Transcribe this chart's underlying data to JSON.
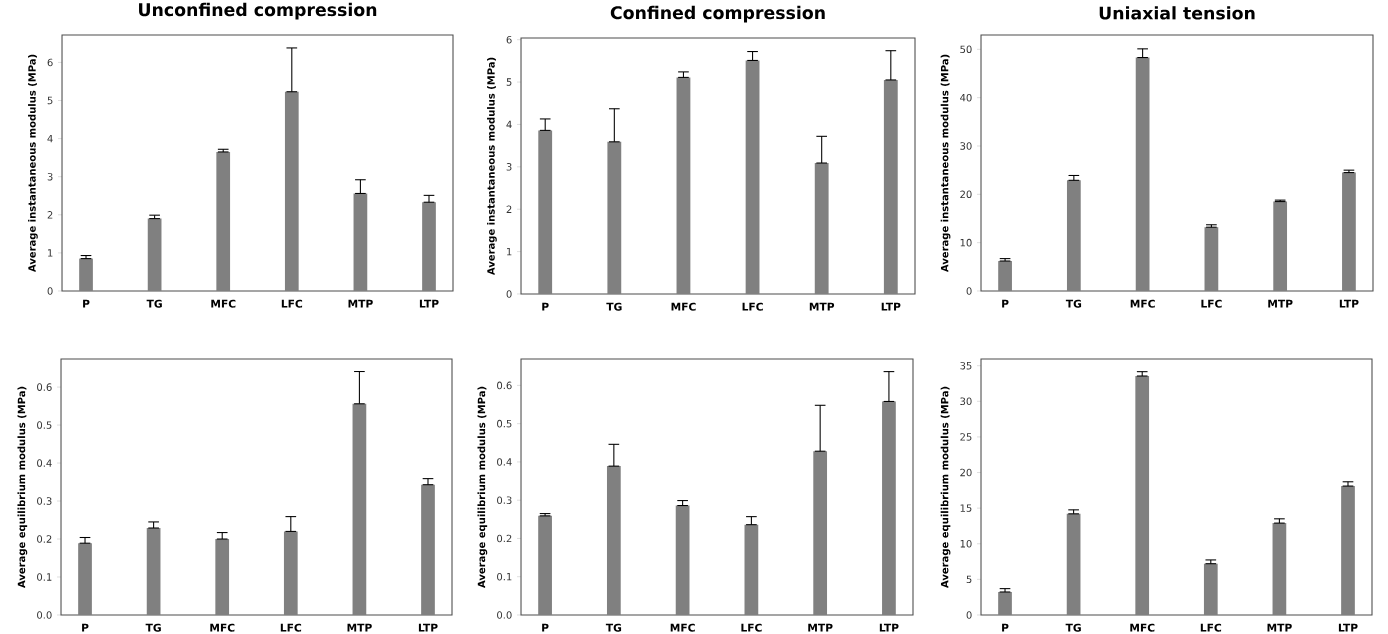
{
  "chart_data": [
    {
      "type": "bar",
      "title": "Unconfined compression",
      "ylabel": "Average instantaneous modulus (MPa)",
      "categories": [
        "P",
        "TG",
        "MFC",
        "LFC",
        "MTP",
        "LTP"
      ],
      "color": "#808080",
      "values": [
        0.85,
        1.9,
        3.65,
        5.23,
        2.56,
        2.33
      ],
      "errors": [
        [
          0.85,
          0.93
        ],
        [
          1.9,
          1.99
        ],
        [
          3.65,
          3.72
        ],
        [
          5.23,
          6.38
        ],
        [
          2.56,
          2.92
        ],
        [
          2.33,
          2.51
        ]
      ],
      "ylim": [
        0,
        6.72
      ],
      "yticks": [
        0,
        1,
        2,
        3,
        4,
        5,
        6
      ]
    },
    {
      "type": "bar",
      "title": "Confined compression",
      "ylabel": "Average instantaneous modulus (MPa)",
      "categories": [
        "P",
        "TG",
        "MFC",
        "LFC",
        "MTP",
        "LTP"
      ],
      "color": "#808080",
      "values": [
        3.86,
        3.59,
        5.11,
        5.51,
        3.09,
        5.05
      ],
      "errors": [
        [
          3.86,
          4.13
        ],
        [
          3.59,
          4.37
        ],
        [
          5.11,
          5.24
        ],
        [
          5.51,
          5.72
        ],
        [
          3.09,
          3.72
        ],
        [
          5.05,
          5.74
        ]
      ],
      "ylim": [
        0,
        6.04
      ],
      "yticks": [
        0,
        1,
        2,
        3,
        4,
        5,
        6
      ]
    },
    {
      "type": "bar",
      "title": "Uniaxial tension",
      "ylabel": "Average instantaneous modulus (MPa)",
      "categories": [
        "P",
        "TG",
        "MFC",
        "LFC",
        "MTP",
        "LTP"
      ],
      "color": "#808080",
      "values": [
        6.2,
        22.9,
        48.3,
        13.2,
        18.5,
        24.5
      ],
      "errors": [
        [
          6.2,
          6.7
        ],
        [
          22.9,
          23.9
        ],
        [
          48.3,
          50.1
        ],
        [
          13.2,
          13.7
        ],
        [
          18.5,
          18.8
        ],
        [
          24.5,
          25.0
        ]
      ],
      "ylim": [
        0,
        52.97
      ],
      "yticks": [
        0,
        10,
        20,
        30,
        40,
        50
      ]
    },
    {
      "type": "bar",
      "ylabel": "Average equilibrium modulus (MPa)",
      "categories": [
        "P",
        "TG",
        "MFC",
        "LFC",
        "MTP",
        "LTP"
      ],
      "color": "#808080",
      "values": [
        0.189,
        0.229,
        0.2,
        0.22,
        0.556,
        0.343
      ],
      "errors": [
        [
          0.189,
          0.204
        ],
        [
          0.229,
          0.245
        ],
        [
          0.2,
          0.217
        ],
        [
          0.22,
          0.259
        ],
        [
          0.556,
          0.641
        ],
        [
          0.343,
          0.359
        ]
      ],
      "ylim": [
        0,
        0.674
      ],
      "yticks": [
        {
          "value": 0,
          "label": "0.0"
        },
        0.1,
        0.2,
        0.3,
        0.4,
        0.5,
        0.6
      ]
    },
    {
      "type": "bar",
      "ylabel": "Average equilibrium modulus (MPa)",
      "categories": [
        "P",
        "TG",
        "MFC",
        "LFC",
        "MTP",
        "LTP"
      ],
      "color": "#808080",
      "values": [
        0.259,
        0.389,
        0.286,
        0.236,
        0.428,
        0.558
      ],
      "errors": [
        [
          0.259,
          0.265
        ],
        [
          0.389,
          0.446
        ],
        [
          0.286,
          0.299
        ],
        [
          0.236,
          0.257
        ],
        [
          0.428,
          0.548
        ],
        [
          0.558,
          0.636
        ]
      ],
      "ylim": [
        0,
        0.669
      ],
      "yticks": [
        {
          "value": 0,
          "label": "0.0"
        },
        0.1,
        0.2,
        0.3,
        0.4,
        0.5,
        0.6
      ]
    },
    {
      "type": "bar",
      "ylabel": "Average equilibrium modulus (MPa)",
      "categories": [
        "P",
        "TG",
        "MFC",
        "LFC",
        "MTP",
        "LTP"
      ],
      "color": "#808080",
      "values": [
        3.23,
        14.2,
        33.55,
        7.2,
        12.9,
        18.1
      ],
      "errors": [
        [
          3.23,
          3.7
        ],
        [
          14.2,
          14.76
        ],
        [
          33.55,
          34.16
        ],
        [
          7.2,
          7.73
        ],
        [
          12.9,
          13.5
        ],
        [
          18.1,
          18.7
        ]
      ],
      "ylim": [
        0,
        35.94
      ],
      "yticks": [
        0,
        5,
        10,
        15,
        20,
        25,
        30,
        35
      ]
    }
  ]
}
